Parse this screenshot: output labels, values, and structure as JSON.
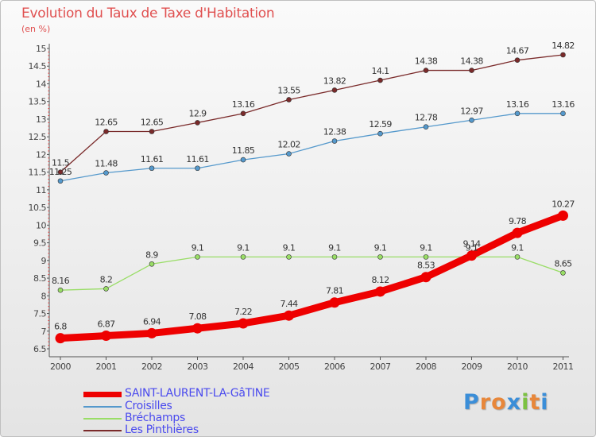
{
  "title": "Evolution du Taux de Taxe d'Habitation",
  "unit": "(en %)",
  "logo": {
    "letters": [
      "P",
      "r",
      "o",
      "x",
      "i",
      "t",
      "i"
    ],
    "colors": [
      "#3b8ed8",
      "#e8873a",
      "#e8873a",
      "#3b8ed8",
      "#7cc242",
      "#e8873a",
      "#3b8ed8"
    ]
  },
  "chart_data": {
    "type": "line",
    "x": [
      "2000",
      "2001",
      "2002",
      "2003",
      "2004",
      "2005",
      "2006",
      "2007",
      "2008",
      "2009",
      "2010",
      "2011"
    ],
    "ylim": [
      6.5,
      15
    ],
    "yticks": [
      "6.5",
      "7",
      "7.5",
      "8",
      "8.5",
      "9",
      "9.5",
      "10",
      "10.5",
      "11",
      "11.5",
      "12",
      "12.5",
      "13",
      "13.5",
      "14",
      "14.5",
      "15"
    ],
    "grid": false,
    "legend": "bottom-left",
    "series": [
      {
        "name": "SAINT-LAURENT-LA-GâTINE",
        "color": "#ee0000",
        "emphasis": true,
        "values": [
          6.8,
          6.87,
          6.94,
          7.08,
          7.22,
          7.44,
          7.81,
          8.12,
          8.53,
          9.14,
          9.78,
          10.27
        ],
        "labels": [
          "6.8",
          "6.87",
          "6.94",
          "7.08",
          "7.22",
          "7.44",
          "7.81",
          "8.12",
          "8.53",
          "9.14",
          "9.78",
          "10.27"
        ]
      },
      {
        "name": "Croisilles",
        "color": "#5599cc",
        "values": [
          11.25,
          11.48,
          11.61,
          11.61,
          11.85,
          12.02,
          12.38,
          12.59,
          12.78,
          12.97,
          13.16,
          13.16
        ],
        "labels": [
          "11.25",
          "11.48",
          "11.61",
          "11.61",
          "11.85",
          "12.02",
          "12.38",
          "12.59",
          "12.78",
          "12.97",
          "13.16",
          "13.16"
        ]
      },
      {
        "name": "Bréchamps",
        "color": "#99dd66",
        "values": [
          8.16,
          8.2,
          8.9,
          9.1,
          9.1,
          9.1,
          9.1,
          9.1,
          9.1,
          9.1,
          9.1,
          8.65
        ],
        "labels": [
          "8.16",
          "8.2",
          "8.9",
          "9.1",
          "9.1",
          "9.1",
          "9.1",
          "9.1",
          "9.1",
          "9.1",
          "9.1",
          "8.65"
        ]
      },
      {
        "name": "Les Pinthières",
        "color": "#7a2a2a",
        "values": [
          11.5,
          12.65,
          12.65,
          12.9,
          13.16,
          13.55,
          13.82,
          14.1,
          14.38,
          14.38,
          14.67,
          14.82
        ],
        "labels": [
          "11.5",
          "12.65",
          "12.65",
          "12.9",
          "13.16",
          "13.55",
          "13.82",
          "14.1",
          "14.38",
          "14.38",
          "14.67",
          "14.82"
        ]
      }
    ]
  }
}
